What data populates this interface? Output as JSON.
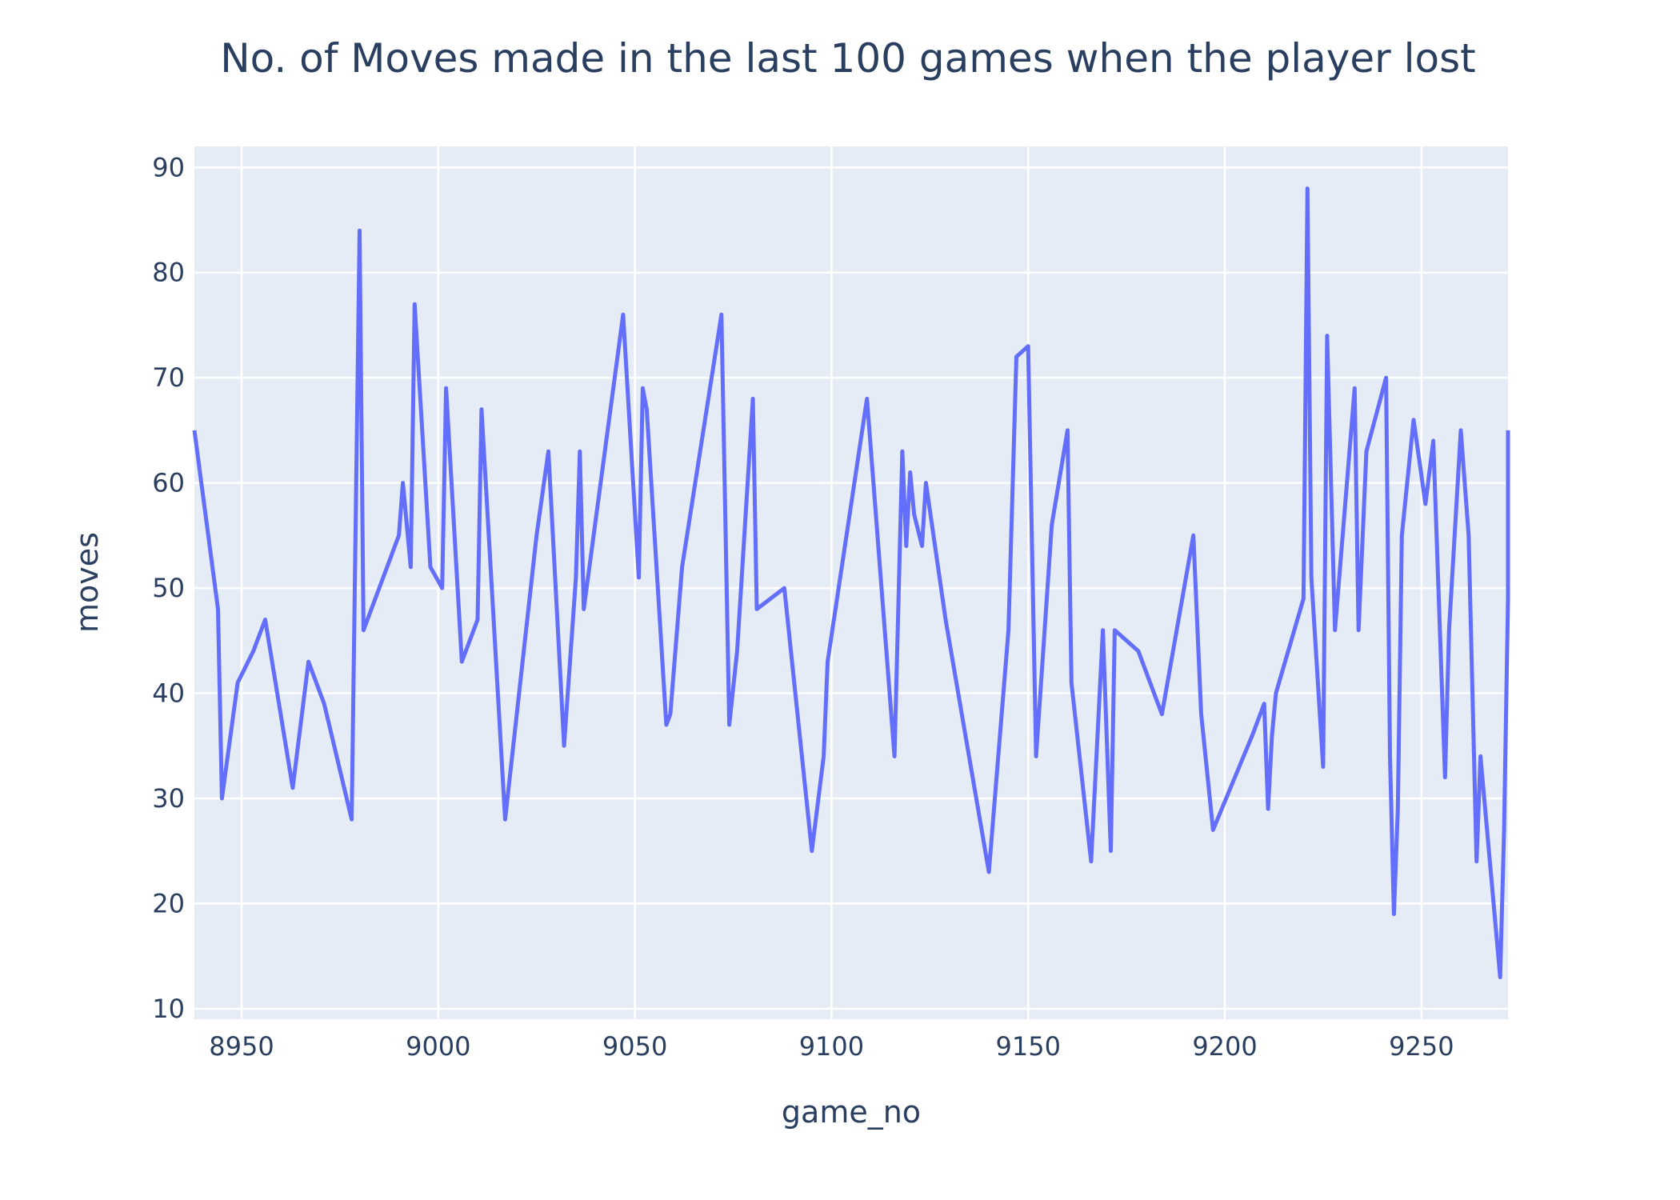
{
  "chart_data": {
    "type": "line",
    "title": "No. of Moves made in the last 100 games when the player lost",
    "xlabel": "game_no",
    "ylabel": "moves",
    "xlim": [
      8938,
      9272
    ],
    "ylim": [
      9,
      92
    ],
    "xticks": [
      8950,
      9000,
      9050,
      9100,
      9150,
      9200,
      9250
    ],
    "yticks": [
      10,
      20,
      30,
      40,
      50,
      60,
      70,
      80,
      90
    ],
    "grid": true,
    "legend": false,
    "colors": {
      "line": "#636efa",
      "plot_bg": "#e5ecf6",
      "text": "#2a3f5f"
    },
    "series": [
      {
        "x": [
          8938,
          8944,
          8945,
          8949,
          8953,
          8956,
          8963,
          8967,
          8971,
          8978,
          8980,
          8981,
          8990,
          8991,
          8993,
          8994,
          8998,
          9001,
          9002,
          9006,
          9010,
          9011,
          9017,
          9025,
          9028,
          9032,
          9035,
          9036,
          9037,
          9047,
          9051,
          9052,
          9053,
          9058,
          9059,
          9062,
          9072,
          9074,
          9076,
          9080,
          9081,
          9088,
          9095,
          9098,
          9099,
          9109,
          9116,
          9118,
          9119,
          9120,
          9121,
          9123,
          9124,
          9129,
          9140,
          9145,
          9147,
          9150,
          9152,
          9156,
          9160,
          9161,
          9166,
          9169,
          9171,
          9172,
          9178,
          9184,
          9192,
          9194,
          9197,
          9207,
          9210,
          9211,
          9212,
          9213,
          9220,
          9221,
          9222,
          9225,
          9226,
          9228,
          9233,
          9234,
          9236,
          9241,
          9242,
          9243,
          9244,
          9245,
          9248,
          9251,
          9253,
          9256,
          9257,
          9260,
          9262,
          9264,
          9265,
          9270,
          9271,
          9272,
          9272
        ],
        "y": [
          65,
          48,
          30,
          41,
          44,
          47,
          31,
          43,
          39,
          28,
          84,
          46,
          55,
          60,
          52,
          77,
          52,
          50,
          69,
          43,
          47,
          67,
          28,
          55,
          63,
          35,
          51,
          63,
          48,
          76,
          51,
          69,
          67,
          37,
          38,
          52,
          76,
          37,
          44,
          68,
          48,
          50,
          25,
          34,
          43,
          68,
          34,
          63,
          54,
          61,
          57,
          54,
          60,
          47,
          23,
          46,
          72,
          73,
          34,
          56,
          65,
          41,
          24,
          46,
          25,
          46,
          44,
          38,
          55,
          38,
          27,
          36,
          39,
          29,
          36,
          40,
          49,
          88,
          51,
          33,
          74,
          46,
          69,
          46,
          63,
          70,
          34,
          19,
          29,
          55,
          66,
          58,
          64,
          32,
          46,
          65,
          55,
          24,
          34,
          13,
          27,
          49,
          65
        ]
      }
    ]
  }
}
